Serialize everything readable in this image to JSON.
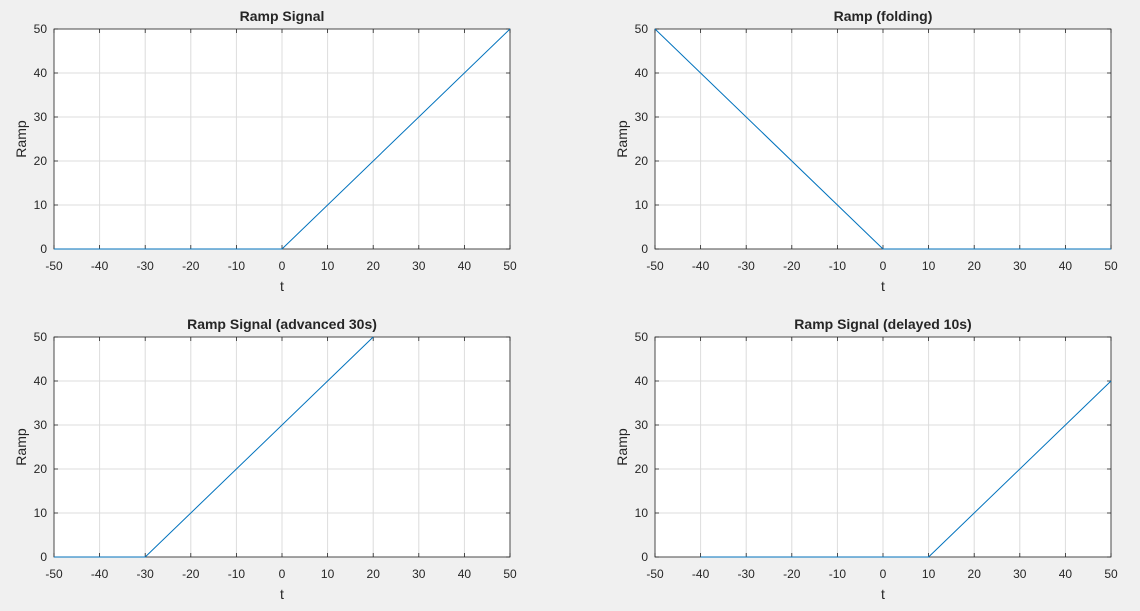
{
  "figure": {
    "background": "#f0f0f0",
    "axes_background": "#ffffff",
    "line_color": "#0072bd",
    "grid_color": "#dcdcdc",
    "axis_color": "#262626"
  },
  "chart_data": [
    {
      "type": "line",
      "title": "Ramp Signal",
      "xlabel": "t",
      "ylabel": "Ramp",
      "xlim": [
        -50,
        50
      ],
      "ylim": [
        0,
        50
      ],
      "xticks": [
        -50,
        -40,
        -30,
        -20,
        -10,
        0,
        10,
        20,
        30,
        40,
        50
      ],
      "yticks": [
        0,
        10,
        20,
        30,
        40,
        50
      ],
      "grid": true,
      "series": [
        {
          "x": [
            -50,
            0,
            50
          ],
          "y": [
            0,
            0,
            50
          ]
        }
      ]
    },
    {
      "type": "line",
      "title": "Ramp (folding)",
      "xlabel": "t",
      "ylabel": "Ramp",
      "xlim": [
        -50,
        50
      ],
      "ylim": [
        0,
        50
      ],
      "xticks": [
        -50,
        -40,
        -30,
        -20,
        -10,
        0,
        10,
        20,
        30,
        40,
        50
      ],
      "yticks": [
        0,
        10,
        20,
        30,
        40,
        50
      ],
      "grid": true,
      "series": [
        {
          "x": [
            -50,
            0,
            50
          ],
          "y": [
            50,
            0,
            0
          ]
        }
      ]
    },
    {
      "type": "line",
      "title": "Ramp Signal (advanced 30s)",
      "xlabel": "t",
      "ylabel": "Ramp",
      "xlim": [
        -50,
        50
      ],
      "ylim": [
        0,
        50
      ],
      "xticks": [
        -50,
        -40,
        -30,
        -20,
        -10,
        0,
        10,
        20,
        30,
        40,
        50
      ],
      "yticks": [
        0,
        10,
        20,
        30,
        40,
        50
      ],
      "grid": true,
      "series": [
        {
          "x": [
            -50,
            -30,
            20
          ],
          "y": [
            0,
            0,
            50
          ]
        }
      ]
    },
    {
      "type": "line",
      "title": "Ramp Signal (delayed 10s)",
      "xlabel": "t",
      "ylabel": "Ramp",
      "xlim": [
        -50,
        50
      ],
      "ylim": [
        0,
        50
      ],
      "xticks": [
        -50,
        -40,
        -30,
        -20,
        -10,
        0,
        10,
        20,
        30,
        40,
        50
      ],
      "yticks": [
        0,
        10,
        20,
        30,
        40,
        50
      ],
      "grid": true,
      "series": [
        {
          "x": [
            -40,
            10,
            50
          ],
          "y": [
            0,
            0,
            40
          ]
        }
      ]
    }
  ]
}
